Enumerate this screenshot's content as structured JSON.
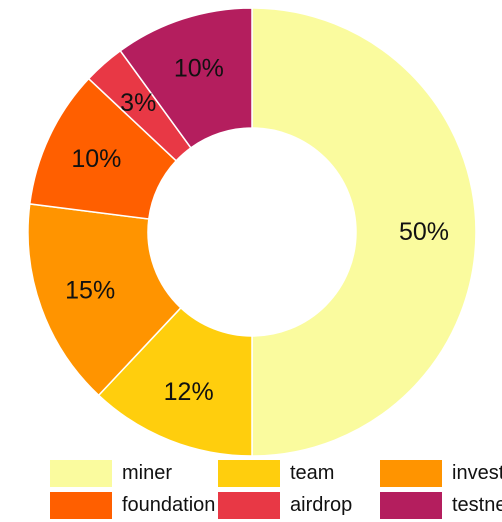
{
  "chart_data": {
    "type": "pie",
    "donut": true,
    "title": "",
    "legend_position": "bottom",
    "slices": [
      {
        "name": "miner",
        "value": 50,
        "label": "50%",
        "color": "#FAFB9E"
      },
      {
        "name": "team",
        "value": 12,
        "label": "12%",
        "color": "#FFCE0D"
      },
      {
        "name": "investor",
        "value": 15,
        "label": "15%",
        "color": "#FF9400"
      },
      {
        "name": "foundation",
        "value": 10,
        "label": "10%",
        "color": "#FF5F00"
      },
      {
        "name": "airdrop",
        "value": 3,
        "label": "3%",
        "color": "#E83845"
      },
      {
        "name": "testnet",
        "value": 10,
        "label": "10%",
        "color": "#B41E5E"
      }
    ]
  }
}
